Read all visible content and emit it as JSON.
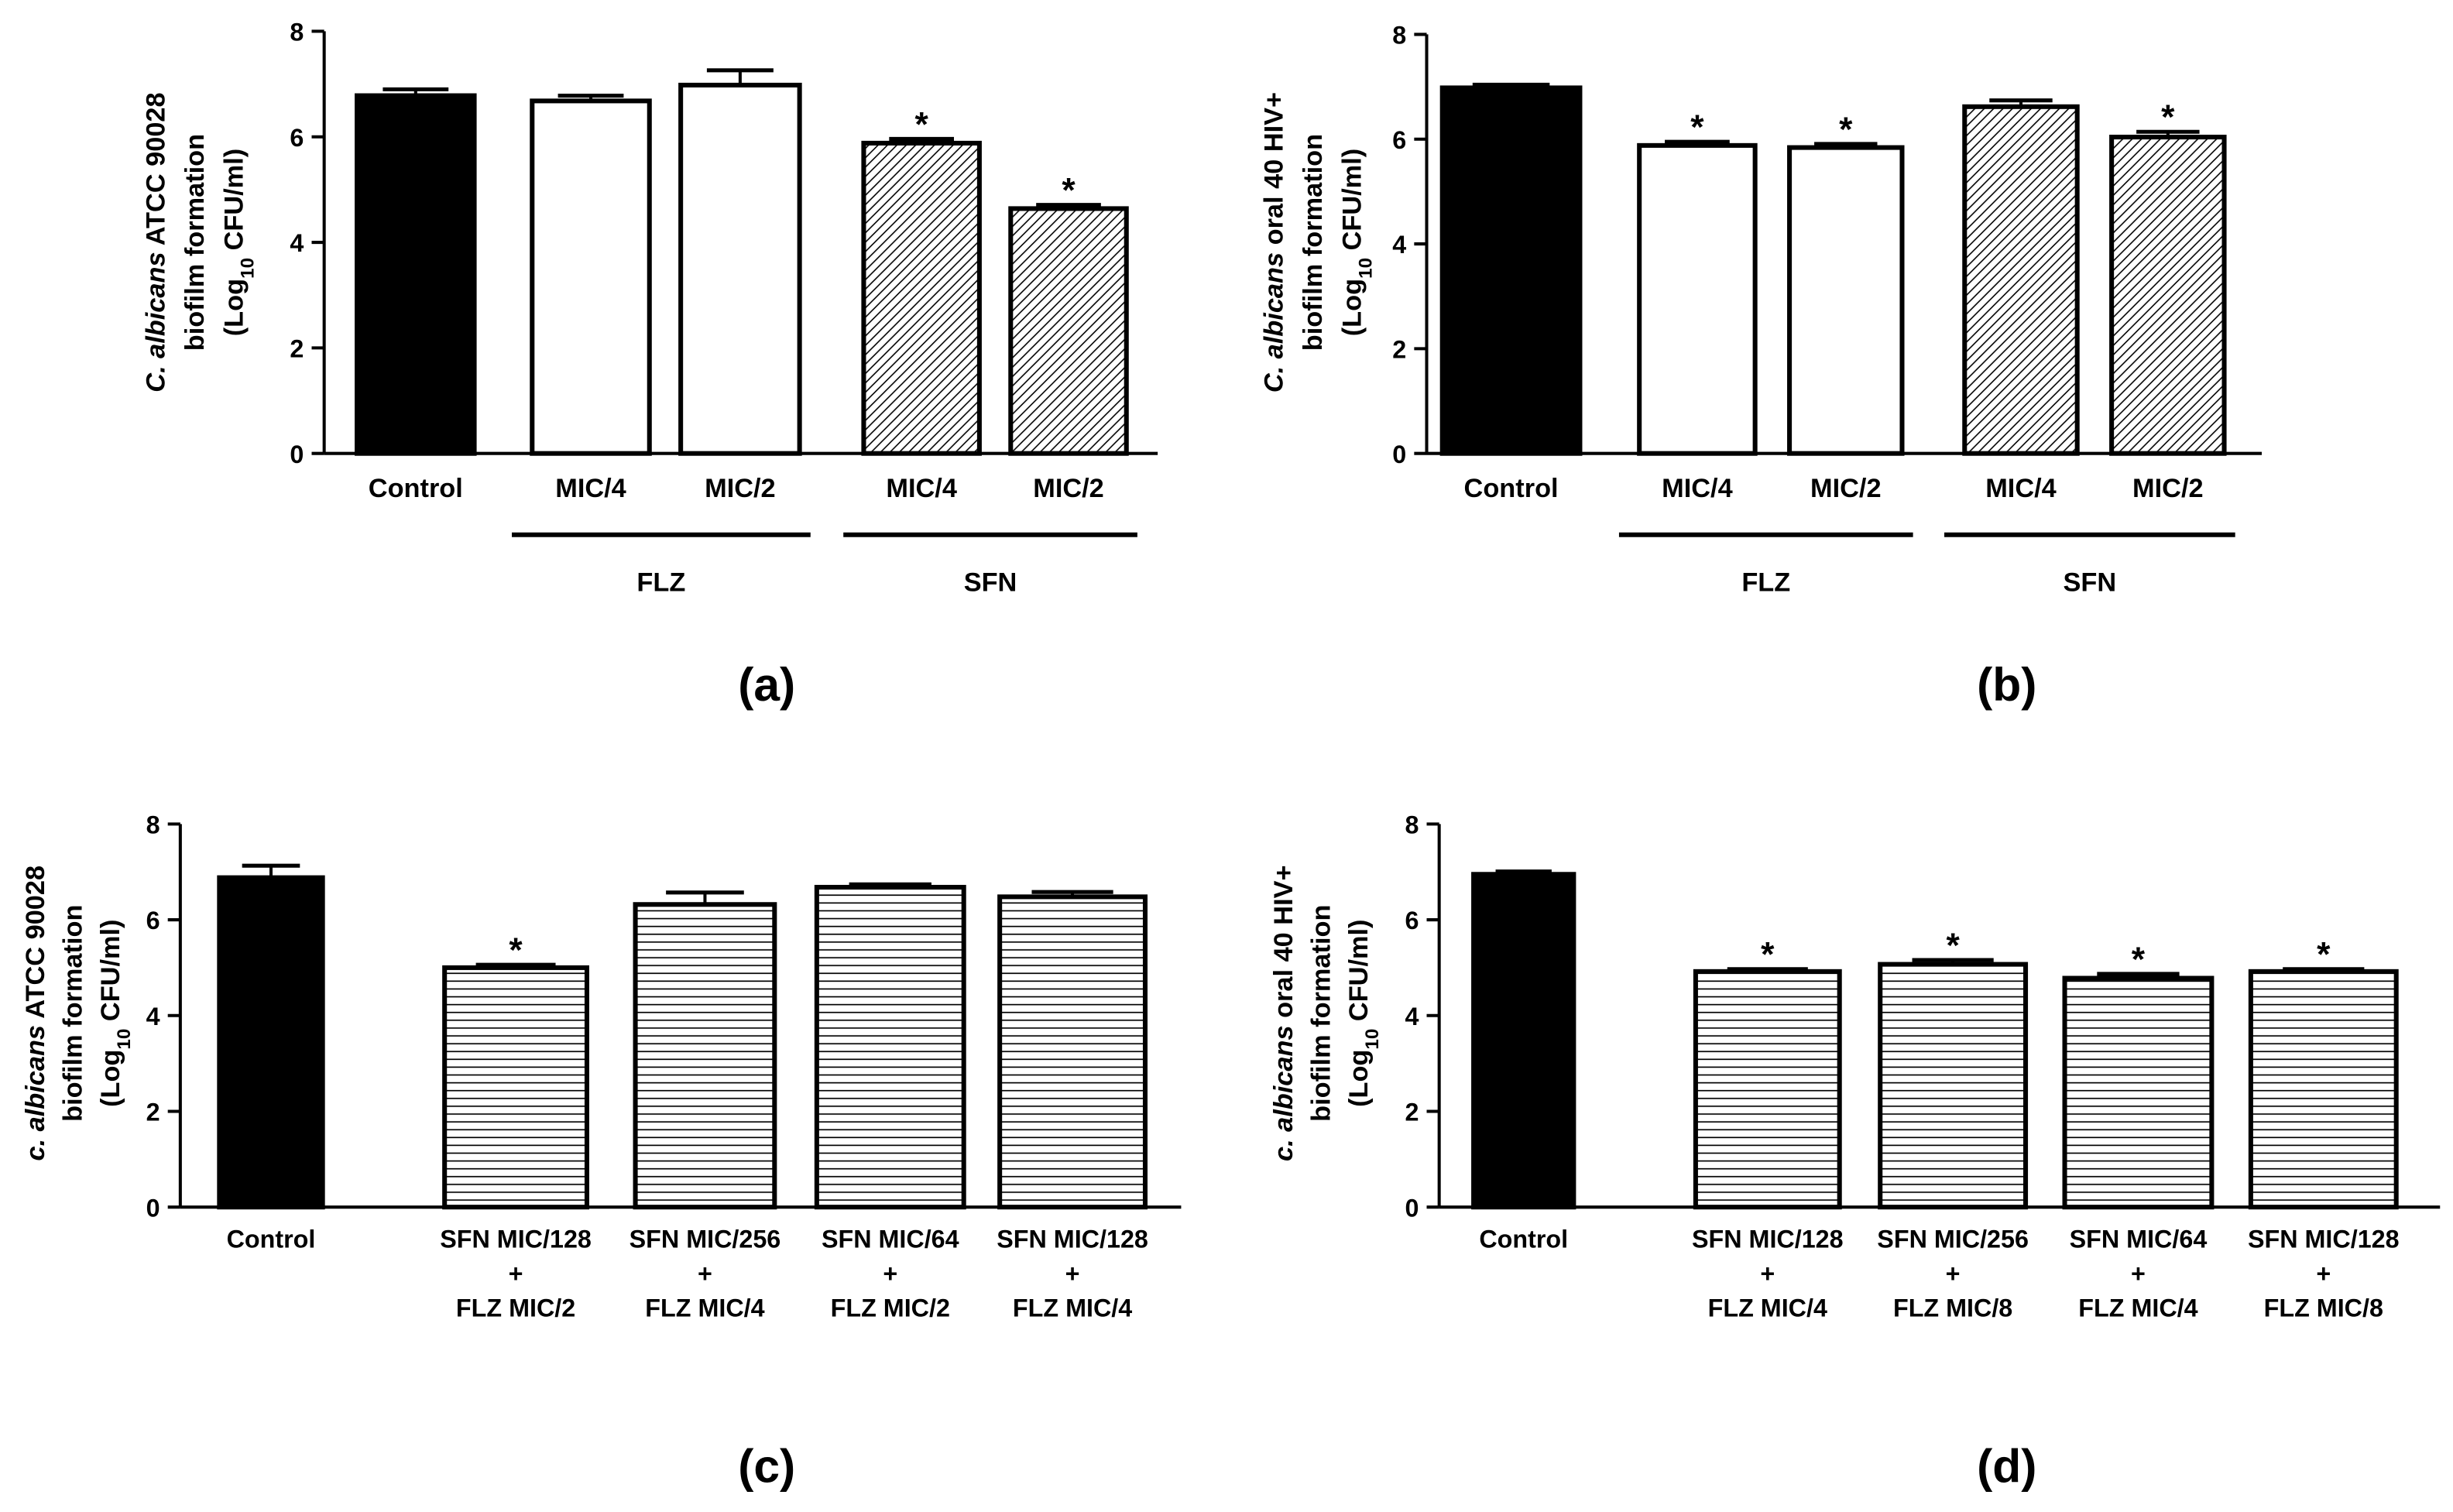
{
  "chart_data": [
    {
      "panel": "(a)",
      "type": "bar",
      "ylabel_lines": [
        [
          {
            "t": "C. albicans",
            "i": true
          },
          {
            "t": " ATCC 90028"
          }
        ],
        [
          {
            "t": "biofilm formation"
          }
        ],
        [
          {
            "t": "(Log"
          },
          {
            "t": "10",
            "sub": true
          },
          {
            "t": " CFU/ml)"
          }
        ]
      ],
      "ylim": [
        0,
        8
      ],
      "yticks": [
        "0",
        "2",
        "4",
        "6",
        "8"
      ],
      "bars": [
        {
          "label": [
            "Control"
          ],
          "value": 6.78,
          "error": 0.12,
          "fill": "solid",
          "sig": ""
        },
        {
          "label": [
            "MIC/4"
          ],
          "value": 6.68,
          "error": 0.1,
          "fill": "white",
          "sig": ""
        },
        {
          "label": [
            "MIC/2"
          ],
          "value": 6.98,
          "error": 0.28,
          "fill": "white",
          "sig": ""
        },
        {
          "label": [
            "MIC/4"
          ],
          "value": 5.88,
          "error": 0.08,
          "fill": "diagonal",
          "sig": "*"
        },
        {
          "label": [
            "MIC/2"
          ],
          "value": 4.64,
          "error": 0.07,
          "fill": "diagonal",
          "sig": "*"
        }
      ],
      "groups": [
        {
          "label": "FLZ",
          "from": 1,
          "to": 2
        },
        {
          "label": "SFN",
          "from": 3,
          "to": 4
        }
      ]
    },
    {
      "panel": "(b)",
      "type": "bar",
      "ylabel_lines": [
        [
          {
            "t": "C. albicans",
            "i": true
          },
          {
            "t": " oral 40 HIV+"
          }
        ],
        [
          {
            "t": "biofilm formation"
          }
        ],
        [
          {
            "t": "(Log"
          },
          {
            "t": "10",
            "sub": true
          },
          {
            "t": " CFU/ml)"
          }
        ]
      ],
      "ylim": [
        0,
        8
      ],
      "yticks": [
        "0",
        "2",
        "4",
        "6",
        "8"
      ],
      "bars": [
        {
          "label": [
            "Control"
          ],
          "value": 6.98,
          "error": 0.06,
          "fill": "solid",
          "sig": ""
        },
        {
          "label": [
            "MIC/4"
          ],
          "value": 5.88,
          "error": 0.07,
          "fill": "white",
          "sig": "*"
        },
        {
          "label": [
            "MIC/2"
          ],
          "value": 5.84,
          "error": 0.07,
          "fill": "white",
          "sig": "*"
        },
        {
          "label": [
            "MIC/4"
          ],
          "value": 6.62,
          "error": 0.12,
          "fill": "diagonal",
          "sig": ""
        },
        {
          "label": [
            "MIC/2"
          ],
          "value": 6.04,
          "error": 0.1,
          "fill": "diagonal",
          "sig": "*"
        }
      ],
      "groups": [
        {
          "label": "FLZ",
          "from": 1,
          "to": 2
        },
        {
          "label": "SFN",
          "from": 3,
          "to": 4
        }
      ]
    },
    {
      "panel": "(c)",
      "type": "bar",
      "ylabel_lines": [
        [
          {
            "t": "c. albicans",
            "i": true
          },
          {
            "t": " ATCC 90028"
          }
        ],
        [
          {
            "t": "biofilm formation"
          }
        ],
        [
          {
            "t": "(Log"
          },
          {
            "t": "10",
            "sub": true
          },
          {
            "t": " CFU/ml)"
          }
        ]
      ],
      "ylim": [
        0,
        8
      ],
      "yticks": [
        "0",
        "2",
        "4",
        "6",
        "8"
      ],
      "bars": [
        {
          "label": [
            "Control"
          ],
          "value": 6.88,
          "error": 0.25,
          "fill": "solid",
          "sig": ""
        },
        {
          "label": [
            "SFN MIC/128",
            "+",
            "FLZ MIC/2"
          ],
          "value": 5.0,
          "error": 0.06,
          "fill": "horizontal",
          "sig": "*"
        },
        {
          "label": [
            "SFN MIC/256",
            "+",
            "FLZ MIC/4"
          ],
          "value": 6.32,
          "error": 0.25,
          "fill": "horizontal",
          "sig": ""
        },
        {
          "label": [
            "SFN MIC/64",
            "+",
            "FLZ MIC/2"
          ],
          "value": 6.68,
          "error": 0.06,
          "fill": "horizontal",
          "sig": ""
        },
        {
          "label": [
            "SFN MIC/128",
            "+",
            "FLZ MIC/4"
          ],
          "value": 6.48,
          "error": 0.1,
          "fill": "horizontal",
          "sig": ""
        }
      ],
      "groups": []
    },
    {
      "panel": "(d)",
      "type": "bar",
      "ylabel_lines": [
        [
          {
            "t": "c. albicans",
            "i": true
          },
          {
            "t": " oral 40 HIV+"
          }
        ],
        [
          {
            "t": "biofilm formation"
          }
        ],
        [
          {
            "t": "(Log"
          },
          {
            "t": "10",
            "sub": true
          },
          {
            "t": " CFU/ml)"
          }
        ]
      ],
      "ylim": [
        0,
        8
      ],
      "yticks": [
        "0",
        "2",
        "4",
        "6",
        "8"
      ],
      "bars": [
        {
          "label": [
            "Control"
          ],
          "value": 6.95,
          "error": 0.06,
          "fill": "solid",
          "sig": ""
        },
        {
          "label": [
            "SFN MIC/128",
            "+",
            "FLZ MIC/4"
          ],
          "value": 4.92,
          "error": 0.05,
          "fill": "horizontal",
          "sig": "*"
        },
        {
          "label": [
            "SFN MIC/256",
            "+",
            "FLZ MIC/8"
          ],
          "value": 5.07,
          "error": 0.09,
          "fill": "horizontal",
          "sig": "*"
        },
        {
          "label": [
            "SFN MIC/64",
            "+",
            "FLZ MIC/4"
          ],
          "value": 4.78,
          "error": 0.09,
          "fill": "horizontal",
          "sig": "*"
        },
        {
          "label": [
            "SFN MIC/128",
            "+",
            "FLZ MIC/8"
          ],
          "value": 4.92,
          "error": 0.05,
          "fill": "horizontal",
          "sig": "*"
        }
      ],
      "groups": []
    }
  ]
}
